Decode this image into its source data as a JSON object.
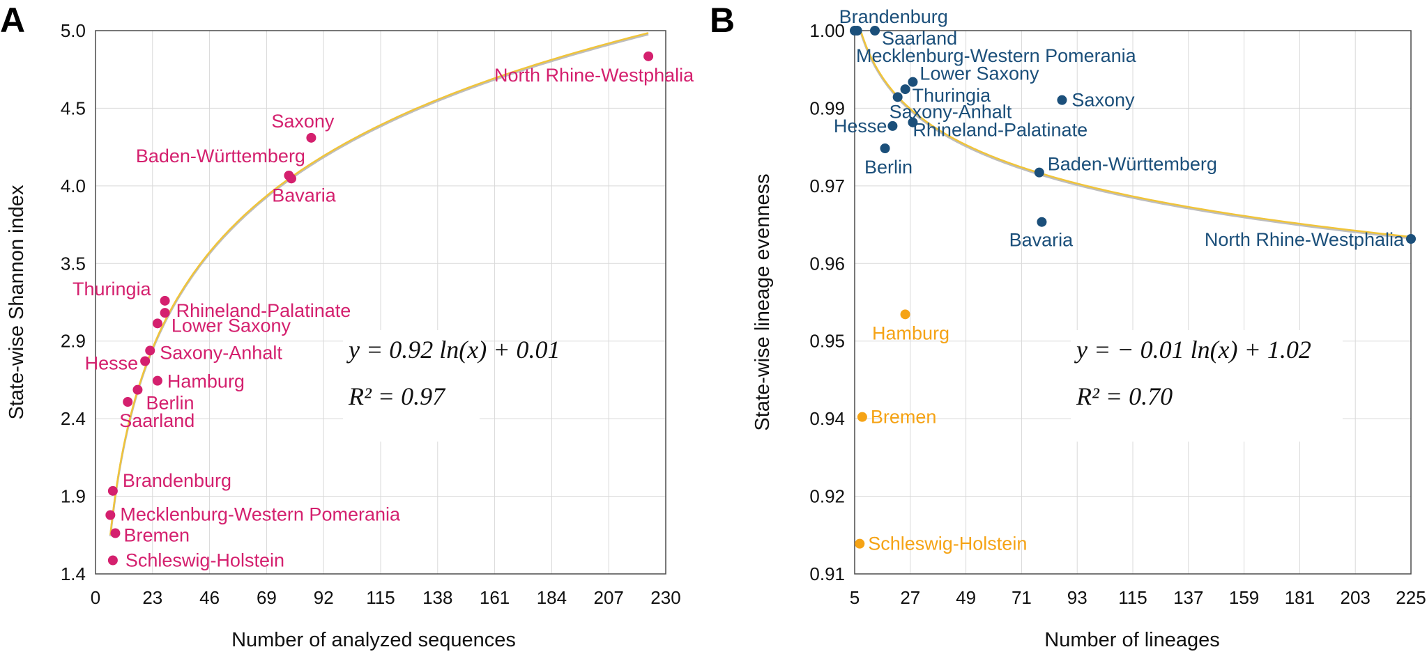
{
  "colors": {
    "panel_a_points": "#d4206e",
    "panel_b_points": "#1b4f7a",
    "panel_b_outliers": "#f5a315",
    "fit_curve": "#f0c43a",
    "fit_shadow": "#bdbdbd"
  },
  "chart_data": [
    {
      "type": "scatter",
      "panel_label": "A",
      "title": "",
      "xlabel": "Number of analyzed sequences",
      "ylabel": "State-wise Shannon index",
      "xlim": [
        0,
        230
      ],
      "ylim": [
        1.4,
        5.0
      ],
      "xticks": [
        "0",
        "23",
        "46",
        "69",
        "92",
        "115",
        "138",
        "161",
        "184",
        "207",
        "230"
      ],
      "yticks": [
        "1.4",
        "1.9",
        "2.4",
        "2.9",
        "3.5",
        "4.0",
        "4.5",
        "5.0"
      ],
      "grid": true,
      "fit": {
        "a": 0.92,
        "b": 0.01,
        "x_from": 6,
        "x_to": 223,
        "equation": "y = 0.92 ln(x) + 0.01",
        "r2": "R² = 0.97"
      },
      "points": [
        {
          "name": "North Rhine-Westphalia",
          "x": 223,
          "y": 4.83,
          "group": "main"
        },
        {
          "name": "Saxony",
          "x": 87,
          "y": 4.29,
          "group": "main"
        },
        {
          "name": "Baden-Württemberg",
          "x": 78,
          "y": 4.04,
          "group": "main"
        },
        {
          "name": "Bavaria",
          "x": 79,
          "y": 4.02,
          "group": "main"
        },
        {
          "name": "Thuringia",
          "x": 28,
          "y": 3.21,
          "group": "main"
        },
        {
          "name": "Rhineland-Palatinate",
          "x": 28,
          "y": 3.13,
          "group": "main"
        },
        {
          "name": "Lower Saxony",
          "x": 25,
          "y": 3.06,
          "group": "main"
        },
        {
          "name": "Saxony-Anhalt",
          "x": 22,
          "y": 2.88,
          "group": "main"
        },
        {
          "name": "Hesse",
          "x": 20,
          "y": 2.81,
          "group": "main"
        },
        {
          "name": "Hamburg",
          "x": 25,
          "y": 2.68,
          "group": "main"
        },
        {
          "name": "Berlin",
          "x": 17,
          "y": 2.62,
          "group": "main"
        },
        {
          "name": "Saarland",
          "x": 13,
          "y": 2.54,
          "group": "main"
        },
        {
          "name": "Brandenburg",
          "x": 7,
          "y": 1.95,
          "group": "main"
        },
        {
          "name": "Mecklenburg-Western Pomerania",
          "x": 6,
          "y": 1.79,
          "group": "main"
        },
        {
          "name": "Bremen",
          "x": 8,
          "y": 1.67,
          "group": "main"
        },
        {
          "name": "Schleswig-Holstein",
          "x": 7,
          "y": 1.49,
          "group": "main"
        }
      ]
    },
    {
      "type": "scatter",
      "panel_label": "B",
      "title": "",
      "xlabel": "Number of lineages",
      "ylabel": "State-wise lineage evenness",
      "xlim": [
        5,
        225
      ],
      "ylim": [
        0.91,
        1.0
      ],
      "xticks": [
        "5",
        "27",
        "49",
        "71",
        "93",
        "115",
        "137",
        "159",
        "181",
        "203",
        "225"
      ],
      "yticks": [
        "0.91",
        "0.92",
        "0.94",
        "0.95",
        "0.96",
        "0.97",
        "0.99",
        "1.00"
      ],
      "grid": true,
      "fit": {
        "a": -0.01,
        "b": 1.02,
        "x_from": 5,
        "x_to": 225,
        "equation": "y = − 0.01 ln(x) + 1.02",
        "r2": "R² = 0.70"
      },
      "points": [
        {
          "name": "Brandenburg",
          "x": 6,
          "y": 1.0,
          "group": "main"
        },
        {
          "name": "Saarland",
          "x": 13,
          "y": 1.0,
          "group": "main"
        },
        {
          "name": "Mecklenburg-Western Pomerania",
          "x": 5,
          "y": 1.0,
          "group": "main"
        },
        {
          "name": "Lower Saxony",
          "x": 28,
          "y": 0.9915,
          "group": "main"
        },
        {
          "name": "Thuringia",
          "x": 25,
          "y": 0.9903,
          "group": "main"
        },
        {
          "name": "Saxony-Anhalt",
          "x": 22,
          "y": 0.989,
          "group": "main"
        },
        {
          "name": "Saxony",
          "x": 87,
          "y": 0.9885,
          "group": "main"
        },
        {
          "name": "Rhineland-Palatinate",
          "x": 28,
          "y": 0.9848,
          "group": "main"
        },
        {
          "name": "Hesse",
          "x": 20,
          "y": 0.9842,
          "group": "main"
        },
        {
          "name": "Berlin",
          "x": 17,
          "y": 0.9805,
          "group": "main"
        },
        {
          "name": "Baden-Württemberg",
          "x": 78,
          "y": 0.9765,
          "group": "main"
        },
        {
          "name": "Bavaria",
          "x": 79,
          "y": 0.9683,
          "group": "main"
        },
        {
          "name": "North Rhine-Westphalia",
          "x": 225,
          "y": 0.9655,
          "group": "main"
        },
        {
          "name": "Hamburg",
          "x": 25,
          "y": 0.953,
          "group": "outlier"
        },
        {
          "name": "Bremen",
          "x": 8,
          "y": 0.936,
          "group": "outlier"
        },
        {
          "name": "Schleswig-Holstein",
          "x": 7,
          "y": 0.915,
          "group": "outlier"
        }
      ]
    }
  ]
}
